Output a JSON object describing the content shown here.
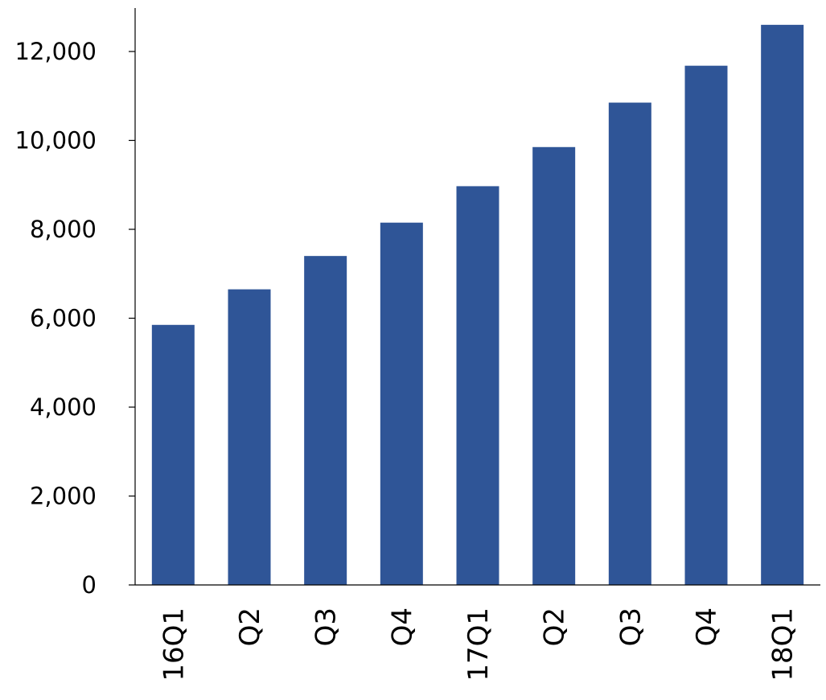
{
  "chart_data": {
    "type": "bar",
    "categories": [
      "16Q1",
      "Q2",
      "Q3",
      "Q4",
      "17Q1",
      "Q2",
      "Q3",
      "Q4",
      "18Q1"
    ],
    "values": [
      5850,
      6650,
      7400,
      8150,
      8970,
      9850,
      10850,
      11680,
      12600
    ],
    "title": "",
    "xlabel": "",
    "ylabel": "",
    "ylim": [
      0,
      13000
    ],
    "yticks": [
      0,
      2000,
      4000,
      6000,
      8000,
      10000,
      12000
    ],
    "ytick_labels": [
      "0",
      "2,000",
      "4,000",
      "6,000",
      "8,000",
      "10,000",
      "12,000"
    ],
    "bar_color": "#2f5597",
    "grid": false,
    "legend": "none"
  }
}
